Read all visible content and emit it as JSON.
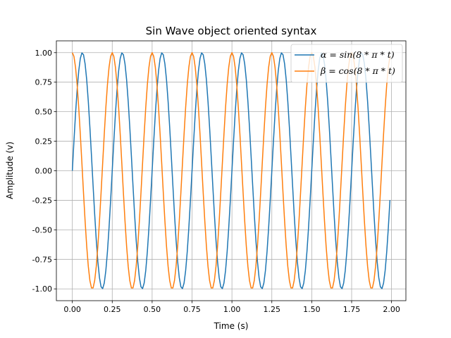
{
  "chart_data": {
    "type": "line",
    "title": "Sin Wave object oriented syntax",
    "xlabel": "Time (s)",
    "ylabel": "Amplitude (v)",
    "xlim": [
      -0.1,
      2.09
    ],
    "ylim": [
      -1.1,
      1.1
    ],
    "x_ticks": [
      "0.00",
      "0.25",
      "0.50",
      "0.75",
      "1.00",
      "1.25",
      "1.50",
      "1.75",
      "2.00"
    ],
    "y_ticks": [
      "1.00",
      "0.75",
      "0.50",
      "0.25",
      "0.00",
      "-0.25",
      "-0.50",
      "-0.75",
      "-1.00"
    ],
    "grid": true,
    "legend_position": "upper right",
    "x": {
      "start": 0.0,
      "stop": 1.99,
      "step": 0.01
    },
    "series": [
      {
        "name": "α = sin(8 * π * t)",
        "function": "sin(8*pi*t)",
        "color": "#1f77b4"
      },
      {
        "name": "β = cos(8 * π * t)",
        "function": "cos(8*pi*t)",
        "color": "#ff7f0e"
      }
    ]
  }
}
